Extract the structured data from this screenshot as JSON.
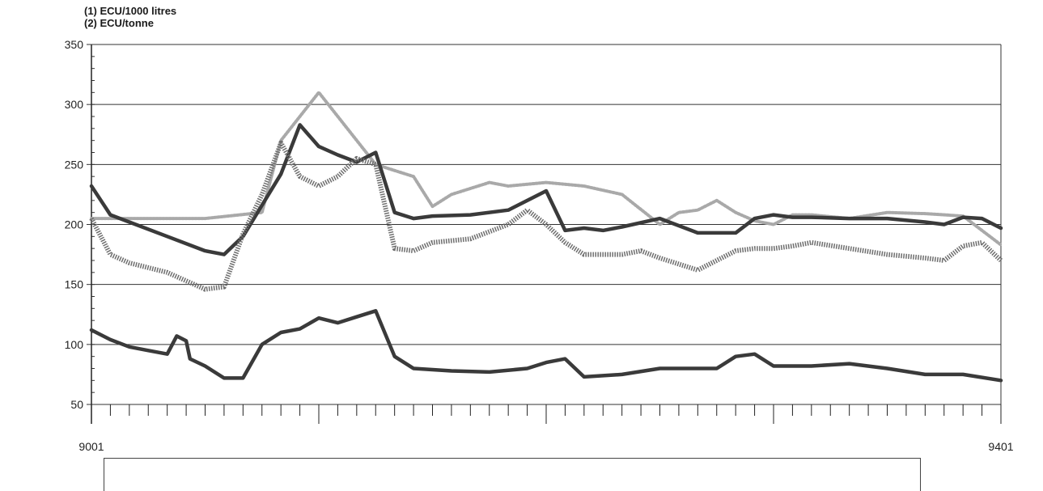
{
  "chart_data": {
    "type": "line",
    "units": [
      "(1) ECU/1000 litres",
      "(2) ECU/tonne"
    ],
    "ylim": [
      50,
      350
    ],
    "yticks": [
      50,
      100,
      150,
      200,
      250,
      300,
      350
    ],
    "x_start_label": "9001",
    "x_end_label": "9401",
    "x_domain": [
      0,
      48
    ],
    "grid": true,
    "series": [
      {
        "style": "dotted-light",
        "color": "#a9a9a9",
        "x": [
          0,
          1,
          3,
          6,
          9,
          10,
          12,
          15,
          16,
          17,
          18,
          19,
          20,
          21,
          22,
          24,
          26,
          28,
          30,
          31,
          32,
          33,
          34,
          35,
          36,
          37,
          38,
          40,
          42,
          44,
          46,
          47,
          48
        ],
        "values": [
          205,
          205,
          205,
          205,
          210,
          270,
          310,
          250,
          245,
          240,
          215,
          225,
          230,
          235,
          232,
          235,
          232,
          225,
          200,
          210,
          212,
          220,
          210,
          203,
          200,
          208,
          208,
          205,
          210,
          209,
          207,
          195,
          183
        ]
      },
      {
        "style": "solid-thick",
        "color": "#3a3a3a",
        "x": [
          0,
          1,
          2,
          4,
          6,
          7,
          8,
          10,
          11,
          12,
          13,
          14,
          15,
          16,
          17,
          18,
          20,
          22,
          24,
          25,
          26,
          27,
          28,
          30,
          32,
          34,
          35,
          36,
          37,
          38,
          40,
          42,
          44,
          45,
          46,
          47,
          48
        ],
        "values": [
          232,
          208,
          202,
          190,
          178,
          175,
          190,
          242,
          283,
          265,
          258,
          252,
          260,
          210,
          205,
          207,
          208,
          212,
          228,
          195,
          197,
          195,
          198,
          205,
          193,
          193,
          205,
          208,
          206,
          206,
          205,
          205,
          202,
          200,
          206,
          205,
          197
        ]
      },
      {
        "style": "hatched-medium",
        "color": "#6e6e6e",
        "x": [
          0,
          1,
          2,
          4,
          6,
          7,
          8,
          9,
          10,
          11,
          12,
          13,
          14,
          15,
          16,
          17,
          18,
          20,
          22,
          23,
          24,
          25,
          26,
          28,
          29,
          30,
          32,
          34,
          35,
          36,
          37,
          38,
          40,
          42,
          44,
          45,
          46,
          47,
          48
        ],
        "values": [
          205,
          175,
          168,
          160,
          146,
          148,
          192,
          225,
          268,
          240,
          232,
          240,
          255,
          250,
          180,
          178,
          185,
          188,
          200,
          212,
          200,
          185,
          175,
          175,
          178,
          172,
          162,
          178,
          180,
          180,
          182,
          185,
          180,
          175,
          172,
          170,
          182,
          185,
          170
        ]
      },
      {
        "style": "solid-thick",
        "color": "#3a3a3a",
        "x": [
          0,
          1,
          2,
          3,
          4,
          4.5,
          5,
          5.2,
          6,
          7,
          8,
          9,
          10,
          11,
          12,
          13,
          14,
          15,
          16,
          17,
          19,
          21,
          23,
          24,
          25,
          26,
          28,
          30,
          32,
          33,
          34,
          35,
          36,
          38,
          40,
          42,
          44,
          46,
          48
        ],
        "values": [
          112,
          104,
          98,
          95,
          92,
          107,
          103,
          88,
          82,
          72,
          72,
          100,
          110,
          113,
          122,
          118,
          123,
          128,
          90,
          80,
          78,
          77,
          80,
          85,
          88,
          73,
          75,
          80,
          80,
          80,
          90,
          92,
          82,
          82,
          84,
          80,
          75,
          75,
          70
        ]
      }
    ]
  }
}
